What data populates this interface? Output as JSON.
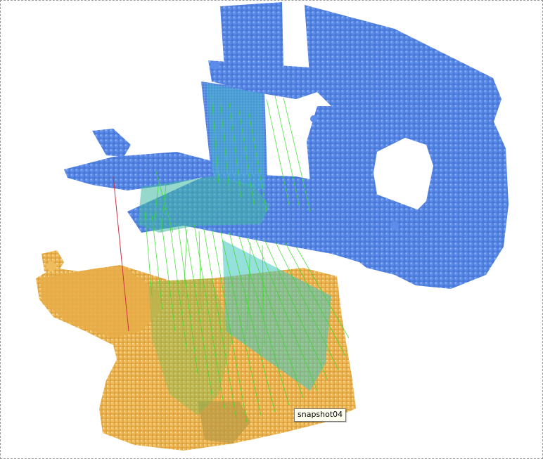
{
  "viewer": {
    "tooltip_label": "snapshot04",
    "colors": {
      "source_cloud": "#4f7fe0",
      "target_cloud": "#ecb550",
      "correspondence_lines": "#33dd22",
      "outlier_line": "#cc3344",
      "fitted_plane": "#3fb8a0"
    }
  }
}
